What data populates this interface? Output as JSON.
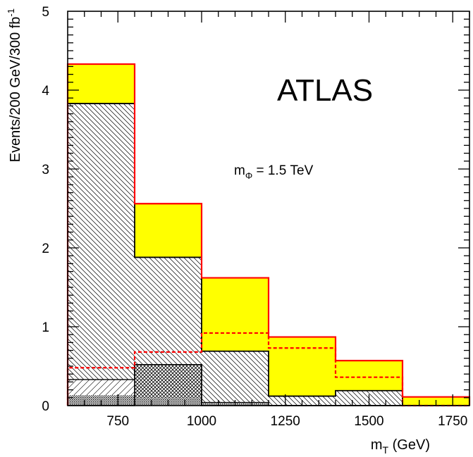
{
  "chart_data": {
    "type": "bar",
    "title": "",
    "annotation_experiment": "ATLAS",
    "annotation_mass_main": "m",
    "annotation_mass_sub": "Φ",
    "annotation_mass_value": " = 1.5 TeV",
    "xlabel_main": "m",
    "xlabel_sub": "T",
    "xlabel_unit": " (GeV)",
    "ylabel_main": "Events/200 GeV/300 fb",
    "ylabel_sup": "-1",
    "xlim": [
      600,
      1800
    ],
    "ylim": [
      0,
      5
    ],
    "xticks": [
      750,
      1000,
      1250,
      1500,
      1750
    ],
    "yticks": [
      0,
      1,
      2,
      3,
      4,
      5
    ],
    "bin_edges": [
      600,
      800,
      1000,
      1200,
      1400,
      1600,
      1800
    ],
    "series": [
      {
        "key": "total",
        "values": [
          4.33,
          2.56,
          1.62,
          0.87,
          0.57,
          0.11
        ],
        "color": "#ffff00",
        "line_color": "#ff0000"
      },
      {
        "key": "hatched_bg",
        "values": [
          3.83,
          1.88,
          0.69,
          0.12,
          0.19,
          0.0
        ]
      },
      {
        "key": "dashed_red",
        "values": [
          0.48,
          0.68,
          0.92,
          0.73,
          0.36,
          0.0
        ],
        "line_color": "#ff0000"
      },
      {
        "key": "light_hatch",
        "values": [
          0.33,
          0.52,
          0.04,
          0.0,
          0.0,
          0.0
        ]
      },
      {
        "key": "crosshatch",
        "values": [
          0.0,
          0.52,
          0.0,
          0.0,
          0.0,
          0.0
        ]
      },
      {
        "key": "dotted",
        "values": [
          0.13,
          0.1,
          0.03,
          0.0,
          0.0,
          0.0
        ]
      }
    ]
  }
}
